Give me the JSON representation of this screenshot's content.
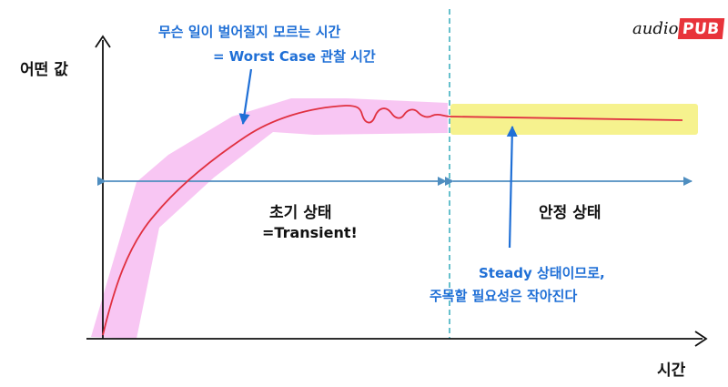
{
  "logo": {
    "word": "audio",
    "badge": "PUB"
  },
  "axes": {
    "y_label": "어떤 값",
    "x_label": "시간"
  },
  "annotations": {
    "worst_case_line1": "무슨 일이 벌어질지 모르는 시간",
    "worst_case_line2": "= Worst Case 관찰 시간",
    "steady_line1": "Steady 상태이므로,",
    "steady_line2": "주목할 필요성은 작아진다"
  },
  "regions": {
    "transient_title": "초기 상태",
    "transient_subtitle": "=Transient!",
    "steady_title": "안정 상태"
  },
  "colors": {
    "curve": "#e03040",
    "axis": "#111111",
    "arrow": "#4f8ec0",
    "divider": "#40b0c0",
    "highlight_transient": "#f6b3ef",
    "highlight_steady": "#f4f07a",
    "annotation_text": "#1f6fd6",
    "logo_badge": "#e8333a"
  }
}
